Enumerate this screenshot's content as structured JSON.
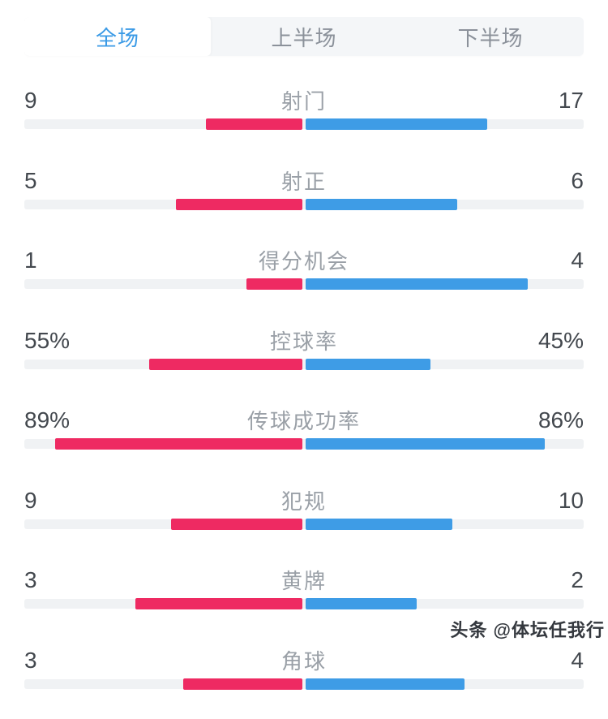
{
  "page": {
    "background": "#ffffff"
  },
  "tabs": {
    "items": [
      {
        "label": "全场",
        "active": true
      },
      {
        "label": "上半场",
        "active": false
      },
      {
        "label": "下半场",
        "active": false
      }
    ]
  },
  "colors": {
    "home_bar": "#ee2a62",
    "away_bar": "#3e9ce6",
    "tab_active_text": "#3a9ae6",
    "track": "#f0f2f4"
  },
  "chart_data": {
    "type": "bar",
    "subtype": "paired-horizontal-comparison",
    "title": "",
    "legend_position": "none",
    "series": [
      {
        "name": "home",
        "color": "#ee2a62",
        "side": "left"
      },
      {
        "name": "away",
        "color": "#3e9ce6",
        "side": "right"
      }
    ],
    "rows": [
      {
        "label": "射门",
        "home": 9,
        "away": 17,
        "home_display": "9",
        "away_display": "17",
        "unit": "count"
      },
      {
        "label": "射正",
        "home": 5,
        "away": 6,
        "home_display": "5",
        "away_display": "6",
        "unit": "count"
      },
      {
        "label": "得分机会",
        "home": 1,
        "away": 4,
        "home_display": "1",
        "away_display": "4",
        "unit": "count"
      },
      {
        "label": "控球率",
        "home": 55,
        "away": 45,
        "home_display": "55%",
        "away_display": "45%",
        "unit": "percent"
      },
      {
        "label": "传球成功率",
        "home": 89,
        "away": 86,
        "home_display": "89%",
        "away_display": "86%",
        "unit": "percent"
      },
      {
        "label": "犯规",
        "home": 9,
        "away": 10,
        "home_display": "9",
        "away_display": "10",
        "unit": "count"
      },
      {
        "label": "黄牌",
        "home": 3,
        "away": 2,
        "home_display": "3",
        "away_display": "2",
        "unit": "count"
      },
      {
        "label": "角球",
        "home": 3,
        "away": 4,
        "home_display": "3",
        "away_display": "4",
        "unit": "count"
      }
    ]
  },
  "watermark": {
    "text": "头条 @体坛任我行"
  }
}
